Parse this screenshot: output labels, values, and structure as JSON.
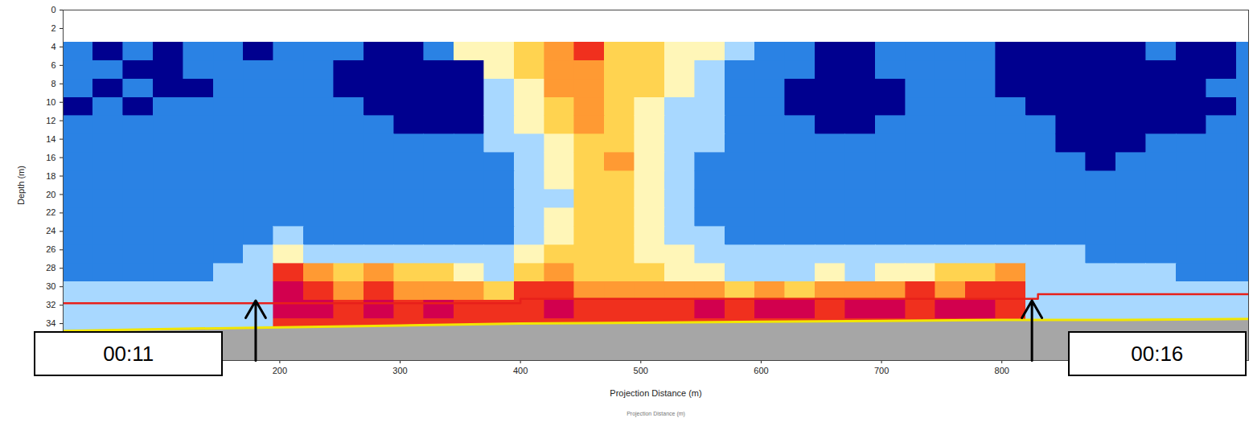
{
  "chart_data": {
    "type": "heatmap",
    "x_label": "Projection Distance (m)",
    "y_label": "Depth (m)",
    "caption": "Projection Distance (m)",
    "xlim": [
      20,
      1005
    ],
    "xticks": [
      200,
      300,
      400,
      500,
      600,
      700,
      800
    ],
    "ylim": [
      0,
      38
    ],
    "yticks": [
      0,
      2,
      4,
      6,
      8,
      10,
      12,
      14,
      16,
      18,
      20,
      22,
      24,
      26,
      28,
      30,
      32,
      34
    ],
    "cells": {
      "x_bins": [
        20,
        45,
        70,
        95,
        120,
        145,
        170,
        195,
        220,
        245,
        270,
        295,
        320,
        345,
        370,
        395,
        420,
        445,
        470,
        495,
        520,
        545,
        570,
        595,
        620,
        645,
        670,
        695,
        720,
        745,
        770,
        795,
        820,
        845,
        870,
        895,
        920,
        945,
        970,
        995,
        1020
      ],
      "depth_bins": [
        3.5,
        5.5,
        7.5,
        9.5,
        11.5,
        13.5,
        15.5,
        17.5,
        19.5,
        21.5,
        23.5,
        25.5,
        27.5,
        29.5,
        31.5,
        33.5,
        35.5
      ],
      "level_colors": [
        "#00008f",
        "#2a82e4",
        "#a8d8ff",
        "#fff6b8",
        "#ffd350",
        "#ff9a33",
        "#f0301e",
        "#d2004e"
      ],
      "levels": [
        [
          2,
          1,
          2,
          1,
          2,
          2,
          1,
          2,
          2,
          2,
          1,
          1,
          2,
          4,
          4,
          5,
          6,
          7,
          5,
          5,
          4,
          4,
          3,
          2,
          2,
          1,
          1,
          2,
          2,
          2,
          2,
          1,
          1,
          1,
          1,
          1,
          2,
          1,
          1,
          2
        ],
        [
          2,
          2,
          1,
          1,
          2,
          2,
          2,
          2,
          2,
          1,
          1,
          1,
          1,
          1,
          4,
          5,
          6,
          6,
          5,
          5,
          4,
          3,
          2,
          2,
          2,
          1,
          1,
          2,
          2,
          2,
          2,
          1,
          1,
          1,
          1,
          1,
          1,
          1,
          1,
          2
        ],
        [
          2,
          1,
          2,
          1,
          1,
          2,
          2,
          2,
          2,
          1,
          1,
          1,
          1,
          1,
          3,
          4,
          6,
          6,
          5,
          5,
          4,
          3,
          2,
          2,
          1,
          1,
          1,
          1,
          2,
          2,
          2,
          1,
          1,
          1,
          1,
          1,
          1,
          1,
          2,
          2
        ],
        [
          1,
          2,
          1,
          2,
          2,
          2,
          2,
          2,
          2,
          2,
          1,
          1,
          1,
          1,
          3,
          4,
          5,
          6,
          5,
          4,
          3,
          3,
          2,
          2,
          1,
          1,
          1,
          1,
          2,
          2,
          2,
          2,
          1,
          1,
          1,
          1,
          1,
          1,
          1,
          2
        ],
        [
          2,
          2,
          2,
          2,
          2,
          2,
          2,
          2,
          2,
          2,
          2,
          1,
          1,
          1,
          3,
          4,
          5,
          6,
          5,
          4,
          3,
          3,
          2,
          2,
          2,
          1,
          1,
          2,
          2,
          2,
          2,
          2,
          2,
          1,
          1,
          1,
          1,
          1,
          2,
          2
        ],
        [
          2,
          2,
          2,
          2,
          2,
          2,
          2,
          2,
          2,
          2,
          2,
          2,
          2,
          2,
          3,
          3,
          4,
          5,
          5,
          4,
          3,
          3,
          2,
          2,
          2,
          2,
          2,
          2,
          2,
          2,
          2,
          2,
          2,
          1,
          1,
          1,
          2,
          2,
          2,
          2
        ],
        [
          2,
          2,
          2,
          2,
          2,
          2,
          2,
          2,
          2,
          2,
          2,
          2,
          2,
          2,
          2,
          3,
          4,
          5,
          6,
          4,
          3,
          2,
          2,
          2,
          2,
          2,
          2,
          2,
          2,
          2,
          2,
          2,
          2,
          2,
          1,
          2,
          2,
          2,
          2,
          2
        ],
        [
          2,
          2,
          2,
          2,
          2,
          2,
          2,
          2,
          2,
          2,
          2,
          2,
          2,
          2,
          2,
          3,
          4,
          5,
          5,
          4,
          3,
          2,
          2,
          2,
          2,
          2,
          2,
          2,
          2,
          2,
          2,
          2,
          2,
          2,
          2,
          2,
          2,
          2,
          2,
          2
        ],
        [
          2,
          2,
          2,
          2,
          2,
          2,
          2,
          2,
          2,
          2,
          2,
          2,
          2,
          2,
          2,
          3,
          3,
          5,
          5,
          4,
          3,
          2,
          2,
          2,
          2,
          2,
          2,
          2,
          2,
          2,
          2,
          2,
          2,
          2,
          2,
          2,
          2,
          2,
          2,
          2
        ],
        [
          2,
          2,
          2,
          2,
          2,
          2,
          2,
          2,
          2,
          2,
          2,
          2,
          2,
          2,
          2,
          3,
          4,
          5,
          5,
          4,
          3,
          2,
          2,
          2,
          2,
          2,
          2,
          2,
          2,
          2,
          2,
          2,
          2,
          2,
          2,
          2,
          2,
          2,
          2,
          2
        ],
        [
          2,
          2,
          2,
          2,
          2,
          2,
          2,
          3,
          2,
          2,
          2,
          2,
          2,
          2,
          2,
          3,
          4,
          5,
          5,
          4,
          3,
          3,
          2,
          2,
          2,
          2,
          2,
          2,
          2,
          2,
          2,
          2,
          2,
          2,
          2,
          2,
          2,
          2,
          2,
          2
        ],
        [
          2,
          2,
          2,
          2,
          2,
          2,
          3,
          4,
          3,
          3,
          3,
          3,
          3,
          3,
          3,
          4,
          5,
          5,
          5,
          4,
          4,
          3,
          3,
          3,
          3,
          3,
          3,
          3,
          3,
          3,
          3,
          3,
          3,
          3,
          2,
          2,
          2,
          2,
          2,
          2
        ],
        [
          2,
          2,
          2,
          2,
          2,
          3,
          3,
          7,
          6,
          5,
          6,
          5,
          5,
          4,
          3,
          5,
          6,
          5,
          5,
          5,
          4,
          4,
          3,
          3,
          3,
          4,
          3,
          4,
          4,
          5,
          5,
          6,
          3,
          3,
          3,
          3,
          3,
          2,
          2,
          2
        ],
        [
          3,
          3,
          3,
          3,
          3,
          3,
          3,
          8,
          7,
          6,
          7,
          6,
          6,
          6,
          5,
          7,
          7,
          6,
          6,
          6,
          6,
          6,
          5,
          6,
          5,
          6,
          6,
          6,
          7,
          6,
          7,
          7,
          3,
          3,
          3,
          3,
          3,
          3,
          3,
          3
        ],
        [
          3,
          3,
          3,
          3,
          3,
          3,
          3,
          8,
          8,
          7,
          8,
          7,
          8,
          7,
          7,
          7,
          8,
          7,
          7,
          7,
          7,
          8,
          7,
          8,
          8,
          7,
          8,
          8,
          7,
          8,
          8,
          7,
          3,
          3,
          3,
          3,
          3,
          3,
          3,
          3
        ],
        [
          3,
          3,
          3,
          3,
          3,
          3,
          3,
          7,
          7,
          7,
          7,
          7,
          7,
          7,
          7,
          7,
          7,
          7,
          7,
          7,
          7,
          7,
          7,
          7,
          7,
          7,
          7,
          7,
          7,
          7,
          7,
          7,
          3,
          3,
          3,
          3,
          3,
          3,
          3,
          3
        ]
      ]
    },
    "seabed": {
      "color": "#a6a6a6",
      "line_color": "#f2e600",
      "x": [
        20,
        100,
        200,
        300,
        400,
        500,
        600,
        700,
        800,
        900,
        1005
      ],
      "depth": [
        34.8,
        34.6,
        34.4,
        34.2,
        34.0,
        33.9,
        33.8,
        33.7,
        33.6,
        33.6,
        33.5
      ]
    },
    "lines": [
      {
        "color": "#e8201a",
        "line_style": "step",
        "x": [
          20,
          400,
          830,
          1005
        ],
        "depth": [
          31.8,
          31.3,
          30.8,
          30.8
        ]
      }
    ],
    "annotations": [
      {
        "text": "00:11",
        "x": 180,
        "depth": 31.5
      },
      {
        "text": "00:16",
        "x": 825,
        "depth": 31.5
      }
    ]
  }
}
